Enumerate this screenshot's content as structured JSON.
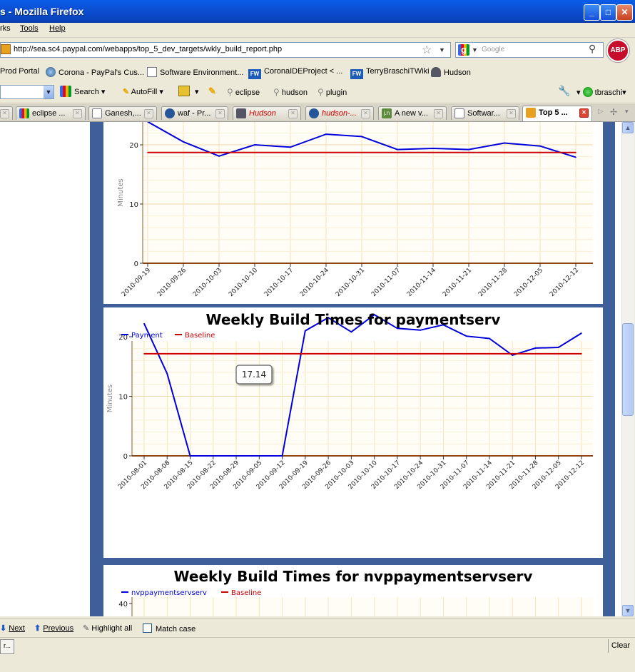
{
  "window": {
    "title": "s - Mozilla Firefox"
  },
  "menu": [
    "rks",
    "Tools",
    "Help"
  ],
  "nav": {
    "url": "http://sea.sc4.paypal.com/webapps/top_5_dev_targets/wkly_build_report.php",
    "search_placeholder": "Google",
    "abp": "ABP"
  },
  "bookmarks": [
    {
      "label": "Prod  Portal",
      "icon": "none"
    },
    {
      "label": "Corona - PayPal's Cus...",
      "icon": "globe"
    },
    {
      "label": "Software Environment...",
      "icon": "page"
    },
    {
      "label": "CoronaIDEProject < ...",
      "icon": "fw"
    },
    {
      "label": "TerryBraschiTWiki",
      "icon": "fw"
    },
    {
      "label": "Hudson",
      "icon": "hudson"
    }
  ],
  "gtoolbar": {
    "search": "Search",
    "autofill": "AutoFill",
    "queries": [
      "eclipse",
      "hudson",
      "plugin"
    ],
    "user": "tbraschi"
  },
  "tabs": [
    {
      "label": "eclipse ..."
    },
    {
      "label": "Ganesh,..."
    },
    {
      "label": "waf - Pr..."
    },
    {
      "label": "Hudson"
    },
    {
      "label": "hudson-..."
    },
    {
      "label": "A new v..."
    },
    {
      "label": "Softwar..."
    },
    {
      "label": "Top 5 ..."
    }
  ],
  "chart_data": [
    {
      "type": "line",
      "title": "",
      "ylabel": "Minutes",
      "ylim": [
        0,
        24
      ],
      "yticks": [
        0,
        10,
        20
      ],
      "x": [
        "2010-09-19",
        "2010-09-26",
        "2010-10-03",
        "2010-10-10",
        "2010-10-17",
        "2010-10-24",
        "2010-10-31",
        "2010-11-07",
        "2010-11-14",
        "2010-11-21",
        "2010-11-28",
        "2010-12-05",
        "2010-12-12"
      ],
      "series": [
        {
          "values": [
            23.9,
            20.5,
            18.1,
            20.0,
            19.6,
            21.8,
            21.4,
            19.2,
            19.4,
            19.2,
            20.3,
            19.8,
            17.9
          ],
          "color": "#0000dd"
        },
        {
          "values": [
            18.7,
            18.7,
            18.7,
            18.7,
            18.7,
            18.7,
            18.7,
            18.7,
            18.7,
            18.7,
            18.7,
            18.7,
            18.7
          ],
          "color": "#cc0000"
        }
      ],
      "legend": "none"
    },
    {
      "type": "line",
      "title": "Weekly Build Times for paymentserv",
      "ylabel": "Minutes",
      "ylim": [
        0,
        30
      ],
      "yticks": [
        0,
        10,
        20
      ],
      "x": [
        "2010-08-01",
        "2010-08-08",
        "2010-08-15",
        "2010-08-22",
        "2010-08-29",
        "2010-09-05",
        "2010-09-12",
        "2010-09-19",
        "2010-09-26",
        "2010-10-03",
        "2010-10-10",
        "2010-10-17",
        "2010-10-24",
        "2010-10-31",
        "2010-11-07",
        "2010-11-14",
        "2010-11-21",
        "2010-11-28",
        "2010-12-05",
        "2010-12-12"
      ],
      "series": [
        {
          "name": "Payment",
          "values": [
            22.2,
            13.8,
            0,
            0,
            0,
            0,
            0,
            21.0,
            23.2,
            20.8,
            23.7,
            21.4,
            21.1,
            22.0,
            20.1,
            19.7,
            16.9,
            18.1,
            18.2,
            20.6
          ],
          "color": "#0000dd"
        },
        {
          "name": "Baseline",
          "values": [
            17.14,
            17.14,
            17.14,
            17.14,
            17.14,
            17.14,
            17.14,
            17.14,
            17.14,
            17.14,
            17.14,
            17.14,
            17.14,
            17.14,
            17.14,
            17.14,
            17.14,
            17.14,
            17.14,
            17.14
          ],
          "color": "#cc0000"
        }
      ],
      "legend": "top-left",
      "tooltip": "17.14"
    },
    {
      "type": "line",
      "title": "Weekly Build Times for nvppaymentservserv",
      "ylabel": "",
      "yticks": [
        40
      ],
      "series": [
        {
          "name": "nvppaymentservserv",
          "color": "#0000dd"
        },
        {
          "name": "Baseline",
          "color": "#cc0000"
        }
      ],
      "legend": "top-left"
    }
  ],
  "findbar": {
    "next": "Next",
    "previous": "Previous",
    "highlight": "Highlight all",
    "match": "Match case"
  },
  "status": {
    "left": "r...",
    "clear": "Clear"
  }
}
